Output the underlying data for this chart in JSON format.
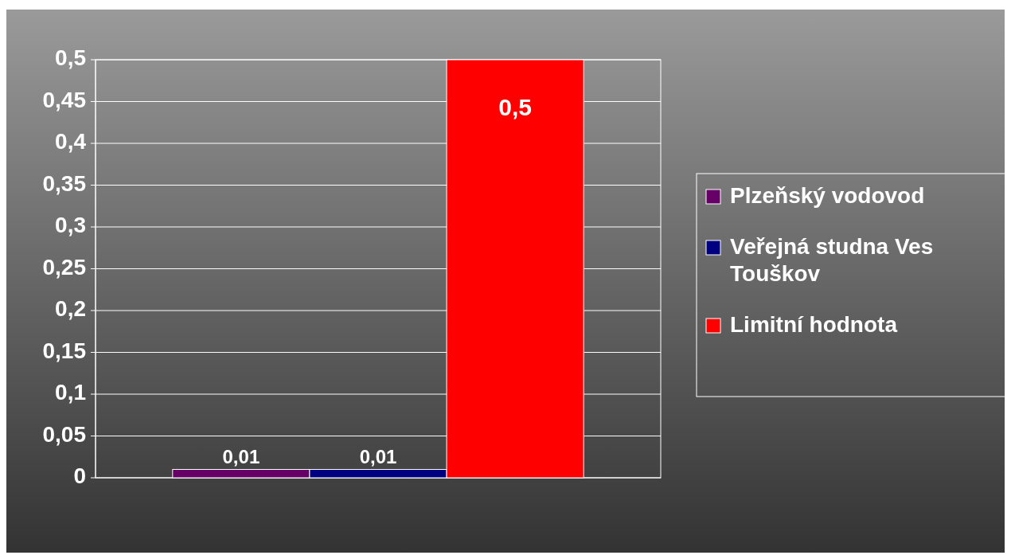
{
  "chart_data": {
    "type": "bar",
    "categories": [
      null
    ],
    "series": [
      {
        "name": "Plzeňský vodovod",
        "color": "#660066",
        "values": [
          0.01
        ],
        "value_labels": [
          "0,01"
        ]
      },
      {
        "name": "Veřejná studna Ves Touškov",
        "color": "#000080",
        "values": [
          0.01
        ],
        "value_labels": [
          "0,01"
        ]
      },
      {
        "name": "Limitní hodnota",
        "color": "#ff0000",
        "values": [
          0.5
        ],
        "value_labels": [
          "0,5"
        ]
      }
    ],
    "ylim": [
      0,
      0.5
    ],
    "yticks": [
      0,
      {
        "value": 0.05,
        "label": "0,05"
      },
      {
        "value": 0.1,
        "label": "0,1"
      },
      {
        "value": 0.15,
        "label": "0,15"
      },
      {
        "value": 0.2,
        "label": "0,2"
      },
      {
        "value": 0.25,
        "label": "0,25"
      },
      {
        "value": 0.3,
        "label": "0,3"
      },
      {
        "value": 0.35,
        "label": "0,35"
      },
      {
        "value": 0.4,
        "label": "0,4"
      },
      {
        "value": 0.45,
        "label": "0,45"
      },
      {
        "value": 0.5,
        "label": "0,5"
      }
    ],
    "grid": "y",
    "legend": "right"
  }
}
